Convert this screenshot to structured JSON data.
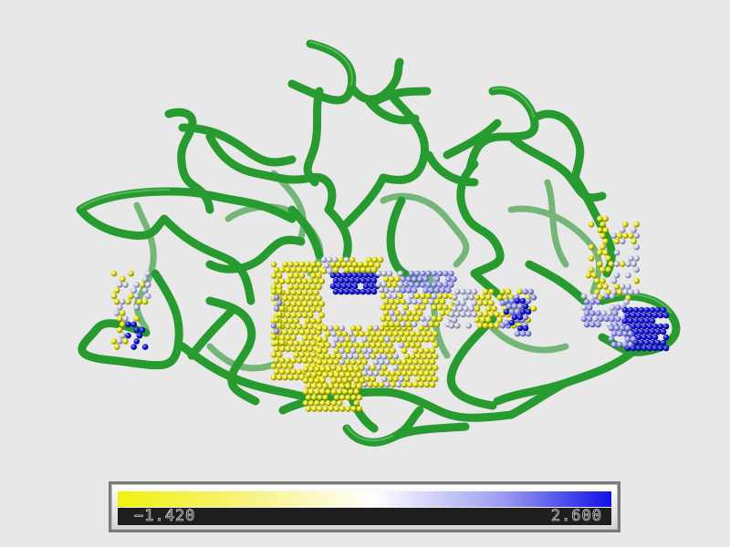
{
  "colors": {
    "background": "#e8e8e8",
    "backbone": "#2f9a35",
    "backbone_dark": "#1a6d22",
    "min_color": "#f1f10d",
    "mid_color": "#ffffff",
    "max_color": "#1111e6"
  },
  "color_bar": {
    "min_label": "−1.420",
    "max_label": "2.600"
  }
}
